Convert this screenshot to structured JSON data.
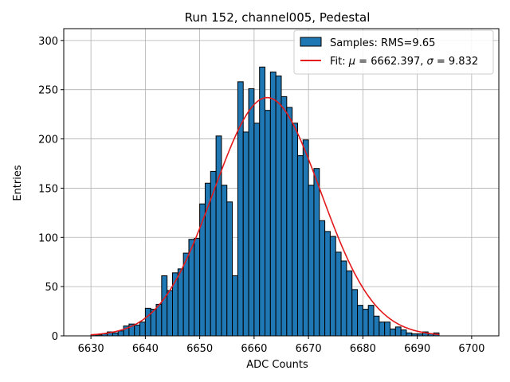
{
  "chart_data": {
    "type": "histogram",
    "title": "Run 152, channel005, Pedestal",
    "xlabel": "ADC Counts",
    "ylabel": "Entries",
    "xlim": [
      6625,
      6705
    ],
    "ylim": [
      0,
      312
    ],
    "xticks": [
      6630,
      6640,
      6650,
      6660,
      6670,
      6680,
      6690,
      6700
    ],
    "yticks": [
      0,
      50,
      100,
      150,
      200,
      250,
      300
    ],
    "grid": true,
    "legend_position": "top-right",
    "bin_width": 1,
    "bins_start": 6630,
    "series": [
      {
        "name": "Samples: RMS=9.65",
        "type": "bar",
        "color": "#1f77b4",
        "edgecolor": "#000000",
        "values": [
          1,
          1,
          2,
          4,
          3,
          5,
          10,
          12,
          11,
          14,
          28,
          27,
          32,
          61,
          46,
          64,
          68,
          84,
          98,
          99,
          134,
          155,
          167,
          203,
          153,
          136,
          61,
          258,
          207,
          251,
          216,
          273,
          229,
          268,
          264,
          243,
          232,
          216,
          183,
          199,
          153,
          170,
          117,
          106,
          101,
          85,
          76,
          66,
          47,
          31,
          27,
          31,
          20,
          14,
          14,
          7,
          9,
          6,
          3,
          2,
          2,
          4,
          2,
          3
        ]
      }
    ],
    "fit": {
      "name": "Fit: $\\mu$ = 6662.397, $\\sigma$ = 9.832",
      "label_prefix": "Fit: ",
      "label_parts": [
        "μ",
        " = 6662.397, ",
        "σ",
        " = 9.832"
      ],
      "type": "line",
      "color": "#e31a1c",
      "mu": 6662.397,
      "sigma": 9.832,
      "amplitude": 242,
      "x_range": [
        6630,
        6694
      ]
    }
  }
}
